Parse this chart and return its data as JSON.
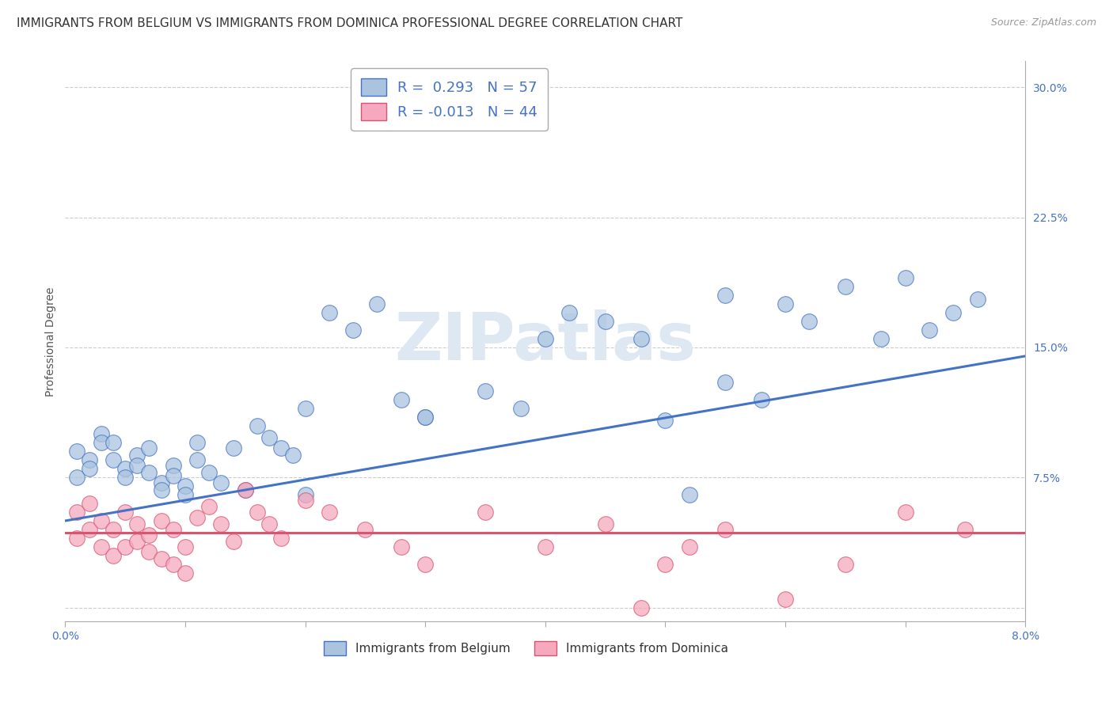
{
  "title": "IMMIGRANTS FROM BELGIUM VS IMMIGRANTS FROM DOMINICA PROFESSIONAL DEGREE CORRELATION CHART",
  "source_text": "Source: ZipAtlas.com",
  "ylabel": "Professional Degree",
  "yticks": [
    0.0,
    0.075,
    0.15,
    0.225,
    0.3
  ],
  "ytick_labels": [
    "",
    "7.5%",
    "15.0%",
    "22.5%",
    "30.0%"
  ],
  "xmin": 0.0,
  "xmax": 0.08,
  "ymin": -0.008,
  "ymax": 0.315,
  "watermark": "ZIPatlas",
  "belgium_color": "#aac4e0",
  "dominica_color": "#f5a8be",
  "belgium_line_color": "#4472c4",
  "dominica_line_color": "#d9546e",
  "title_fontsize": 11,
  "axis_fontsize": 10,
  "belgium_x": [
    0.001,
    0.001,
    0.002,
    0.002,
    0.003,
    0.003,
    0.004,
    0.004,
    0.005,
    0.005,
    0.006,
    0.006,
    0.007,
    0.007,
    0.008,
    0.008,
    0.009,
    0.009,
    0.01,
    0.01,
    0.011,
    0.011,
    0.012,
    0.013,
    0.014,
    0.015,
    0.016,
    0.017,
    0.018,
    0.019,
    0.02,
    0.022,
    0.024,
    0.026,
    0.028,
    0.03,
    0.035,
    0.038,
    0.04,
    0.042,
    0.045,
    0.048,
    0.05,
    0.052,
    0.055,
    0.058,
    0.06,
    0.062,
    0.065,
    0.068,
    0.07,
    0.072,
    0.074,
    0.076,
    0.055,
    0.03,
    0.02
  ],
  "belgium_y": [
    0.09,
    0.075,
    0.085,
    0.08,
    0.1,
    0.095,
    0.095,
    0.085,
    0.08,
    0.075,
    0.088,
    0.082,
    0.078,
    0.092,
    0.072,
    0.068,
    0.082,
    0.076,
    0.07,
    0.065,
    0.095,
    0.085,
    0.078,
    0.072,
    0.092,
    0.068,
    0.105,
    0.098,
    0.092,
    0.088,
    0.115,
    0.17,
    0.16,
    0.175,
    0.12,
    0.11,
    0.125,
    0.115,
    0.155,
    0.17,
    0.165,
    0.155,
    0.108,
    0.065,
    0.18,
    0.12,
    0.175,
    0.165,
    0.185,
    0.155,
    0.19,
    0.16,
    0.17,
    0.178,
    0.13,
    0.11,
    0.065
  ],
  "dominica_x": [
    0.001,
    0.001,
    0.002,
    0.002,
    0.003,
    0.003,
    0.004,
    0.004,
    0.005,
    0.005,
    0.006,
    0.006,
    0.007,
    0.007,
    0.008,
    0.008,
    0.009,
    0.009,
    0.01,
    0.01,
    0.011,
    0.012,
    0.013,
    0.014,
    0.015,
    0.016,
    0.017,
    0.018,
    0.02,
    0.022,
    0.025,
    0.028,
    0.03,
    0.035,
    0.04,
    0.045,
    0.048,
    0.05,
    0.052,
    0.055,
    0.06,
    0.065,
    0.07,
    0.075
  ],
  "dominica_y": [
    0.055,
    0.04,
    0.06,
    0.045,
    0.05,
    0.035,
    0.045,
    0.03,
    0.055,
    0.035,
    0.048,
    0.038,
    0.042,
    0.032,
    0.05,
    0.028,
    0.045,
    0.025,
    0.035,
    0.02,
    0.052,
    0.058,
    0.048,
    0.038,
    0.068,
    0.055,
    0.048,
    0.04,
    0.062,
    0.055,
    0.045,
    0.035,
    0.025,
    0.055,
    0.035,
    0.048,
    0.0,
    0.025,
    0.035,
    0.045,
    0.005,
    0.025,
    0.055,
    0.045
  ],
  "bel_line_x0": 0.0,
  "bel_line_y0": 0.05,
  "bel_line_x1": 0.08,
  "bel_line_y1": 0.145,
  "dom_line_x0": 0.0,
  "dom_line_y0": 0.043,
  "dom_line_x1": 0.08,
  "dom_line_y1": 0.043
}
